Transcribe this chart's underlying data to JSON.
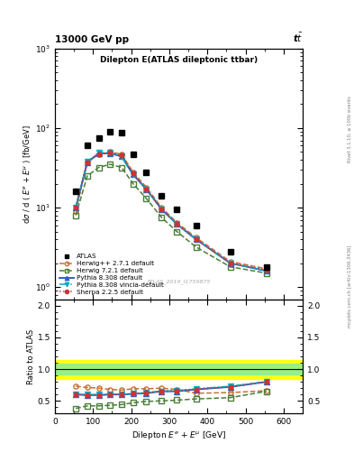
{
  "title_top": "13000 GeV pp",
  "title_top_right": "t$\\bar{t}$",
  "plot_title": "Dilepton E(ATLAS dileptonic ttbar)",
  "atlas_label": "ATLAS_2019_I1759875",
  "rivet_label": "Rivet 3.1.10, ≥ 100k events",
  "mcplots_label": "mcplots.cern.ch [arXiv:1306.3436]",
  "xlabel": "Dilepton $E^e$ + $E^{\\mu}$ [GeV]",
  "ylabel": "d$\\sigma$ / d ( $E^e$ + $E^{\\mu}$ ) [fb/GeV]",
  "ylabel_ratio": "Ratio to ATLAS",
  "xlim": [
    0,
    650
  ],
  "ylim_main": [
    0.7,
    1000
  ],
  "ylim_ratio": [
    0.3,
    2.1
  ],
  "atlas_x": [
    55,
    85,
    115,
    145,
    175,
    205,
    240,
    280,
    320,
    370,
    460,
    555
  ],
  "atlas_y": [
    16,
    60,
    75,
    90,
    88,
    47,
    28,
    14,
    9.5,
    6.0,
    2.8,
    1.8
  ],
  "herwig271_x": [
    55,
    85,
    115,
    145,
    175,
    205,
    240,
    280,
    320,
    370,
    460,
    555
  ],
  "herwig271_y": [
    9.0,
    38,
    47,
    50,
    47,
    28,
    18,
    10,
    6.5,
    4.2,
    2.1,
    1.7
  ],
  "herwig271_color": "#c87137",
  "herwig271_ratio": [
    0.73,
    0.71,
    0.7,
    0.68,
    0.67,
    0.69,
    0.69,
    0.7,
    0.68,
    0.62,
    0.63,
    0.66
  ],
  "herwig721_x": [
    55,
    85,
    115,
    145,
    175,
    205,
    240,
    280,
    320,
    370,
    460,
    555
  ],
  "herwig721_y": [
    8.0,
    25,
    32,
    35,
    32,
    20,
    13,
    7.5,
    5.0,
    3.2,
    1.8,
    1.5
  ],
  "herwig721_color": "#4a7f3a",
  "herwig721_ratio": [
    0.38,
    0.42,
    0.42,
    0.43,
    0.44,
    0.47,
    0.49,
    0.5,
    0.51,
    0.53,
    0.55,
    0.65
  ],
  "pythia8308_x": [
    55,
    85,
    115,
    145,
    175,
    205,
    240,
    280,
    320,
    370,
    460,
    555
  ],
  "pythia8308_y": [
    10,
    37,
    48,
    48,
    44,
    26,
    17,
    9.5,
    6.2,
    4.0,
    2.0,
    1.6
  ],
  "pythia8308_color": "#3060c0",
  "pythia8308_ratio": [
    0.6,
    0.59,
    0.59,
    0.6,
    0.6,
    0.61,
    0.62,
    0.65,
    0.65,
    0.68,
    0.72,
    0.8
  ],
  "pythia8308v_x": [
    55,
    85,
    115,
    145,
    175,
    205,
    240,
    280,
    320,
    370,
    460,
    555
  ],
  "pythia8308v_y": [
    10,
    38,
    49,
    49,
    44,
    26,
    17,
    9.5,
    6.2,
    4.0,
    2.0,
    1.6
  ],
  "pythia8308v_color": "#00aacc",
  "pythia8308v_ratio": [
    0.6,
    0.6,
    0.6,
    0.6,
    0.6,
    0.61,
    0.63,
    0.65,
    0.66,
    0.69,
    0.73,
    0.8
  ],
  "sherpa225_x": [
    55,
    85,
    115,
    145,
    175,
    205,
    240,
    280,
    320,
    370,
    460,
    555
  ],
  "sherpa225_y": [
    10,
    37,
    47,
    49,
    45,
    27,
    17,
    9.5,
    6.2,
    4.0,
    2.0,
    1.65
  ],
  "sherpa225_color": "#cc3333",
  "sherpa225_ratio": [
    0.6,
    0.59,
    0.59,
    0.6,
    0.6,
    0.61,
    0.63,
    0.65,
    0.66,
    0.68,
    0.72,
    0.8
  ],
  "ratio_band_green_ylow": 0.92,
  "ratio_band_green_yhigh": 1.08,
  "ratio_band_yellow_ylow": 0.85,
  "ratio_band_yellow_yhigh": 1.15
}
